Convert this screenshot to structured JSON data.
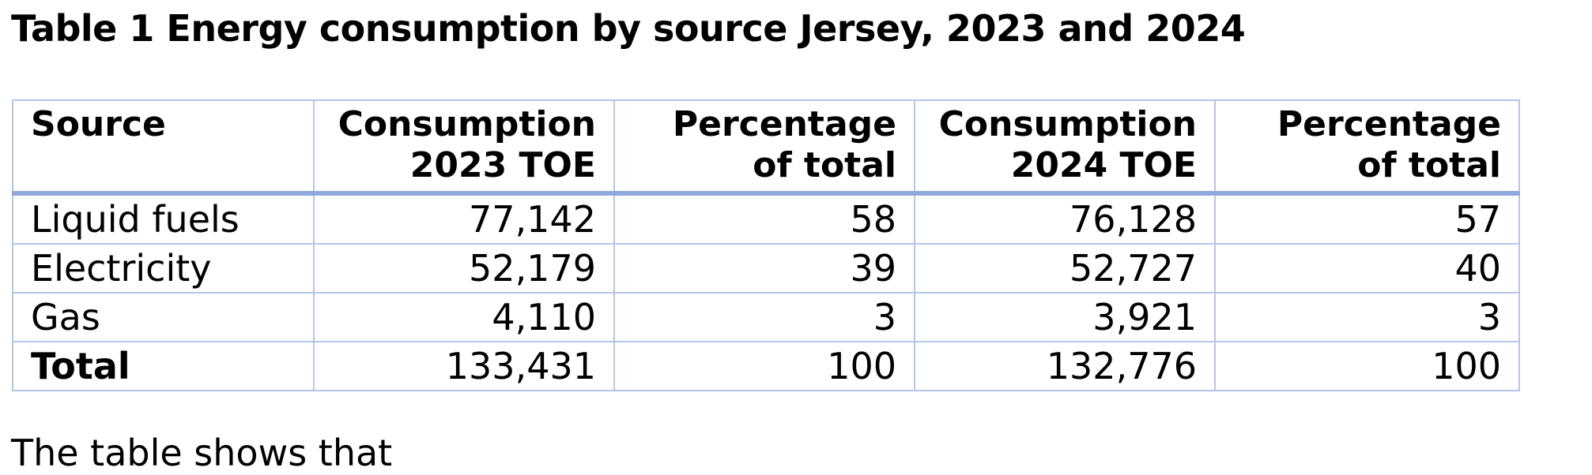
{
  "document": {
    "title": "Table 1 Energy consumption by source Jersey, 2023 and 2024",
    "footer_text": "The table shows that"
  },
  "table": {
    "headers": [
      {
        "line1": "Source",
        "line2": ""
      },
      {
        "line1": "Consumption",
        "line2": "2023 TOE"
      },
      {
        "line1": "Percentage",
        "line2": "of total"
      },
      {
        "line1": "Consumption",
        "line2": "2024 TOE"
      },
      {
        "line1": "Percentage",
        "line2": "of total"
      }
    ],
    "rows": [
      {
        "source": "Liquid fuels",
        "consumption_2023": "77,142",
        "pct_2023": "58",
        "consumption_2024": "76,128",
        "pct_2024": "57"
      },
      {
        "source": "Electricity",
        "consumption_2023": "52,179",
        "pct_2023": "39",
        "consumption_2024": "52,727",
        "pct_2024": "40"
      },
      {
        "source": "Gas",
        "consumption_2023": "4,110",
        "pct_2023": "3",
        "consumption_2024": "3,921",
        "pct_2024": "3"
      },
      {
        "source": "Total",
        "consumption_2023": "133,431",
        "pct_2023": "100",
        "consumption_2024": "132,776",
        "pct_2024": "100"
      }
    ]
  },
  "colors": {
    "border": "#b4c6e7",
    "header_rule": "#8eaadb",
    "text": "#000000",
    "background": "#ffffff"
  }
}
